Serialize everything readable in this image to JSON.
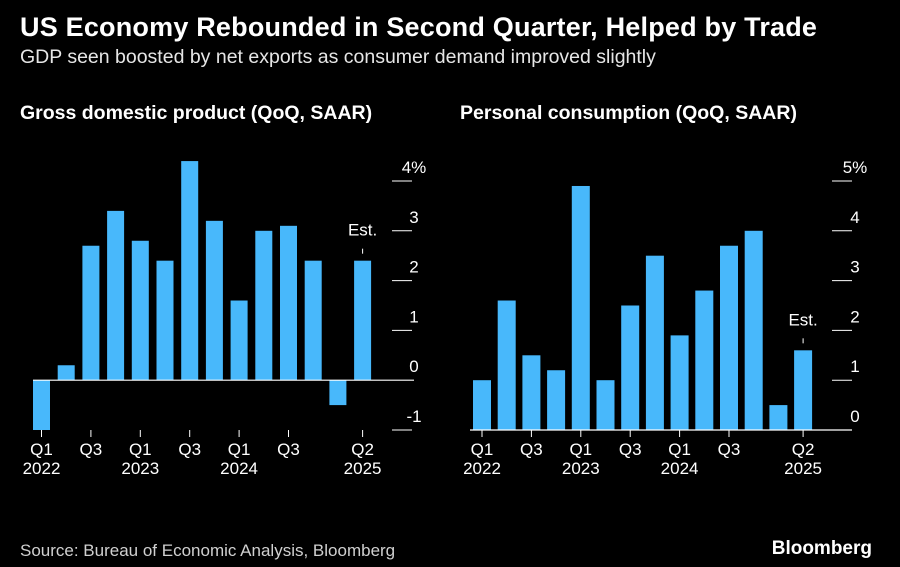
{
  "header": {
    "title": "US Economy Rebounded in Second Quarter, Helped by Trade",
    "subtitle": "GDP seen boosted by net exports as consumer demand improved slightly"
  },
  "footer": {
    "source": "Source: Bureau of Economic Analysis, Bloomberg",
    "brand": "Bloomberg"
  },
  "colors": {
    "bar": "#48b8fb",
    "axis": "#ffffff",
    "background": "#000000"
  },
  "chart_data": [
    {
      "type": "bar",
      "title": "Gross domestic product (QoQ, SAAR)",
      "categories": [
        "Q1 2022",
        "Q2 2022",
        "Q3 2022",
        "Q4 2022",
        "Q1 2023",
        "Q2 2023",
        "Q3 2023",
        "Q4 2023",
        "Q1 2024",
        "Q2 2024",
        "Q3 2024",
        "Q4 2024",
        "Q1 2025",
        "Q2 2025"
      ],
      "values": [
        -1.0,
        0.3,
        2.7,
        3.4,
        2.8,
        2.4,
        4.4,
        3.2,
        1.6,
        3.0,
        3.1,
        2.4,
        -0.5,
        2.4
      ],
      "ylim": [
        -1,
        4
      ],
      "yticks": [
        -1,
        0,
        1,
        2,
        3,
        4
      ],
      "ytick_labels": [
        "-1",
        "0",
        "1",
        "2",
        "3",
        "4%"
      ],
      "x_tick_labels": [
        {
          "index": 0,
          "quarter": "Q1",
          "year": "2022"
        },
        {
          "index": 2,
          "quarter": "Q3",
          "year": ""
        },
        {
          "index": 4,
          "quarter": "Q1",
          "year": "2023"
        },
        {
          "index": 6,
          "quarter": "Q3",
          "year": ""
        },
        {
          "index": 8,
          "quarter": "Q1",
          "year": "2024"
        },
        {
          "index": 10,
          "quarter": "Q3",
          "year": ""
        },
        {
          "index": 13,
          "quarter": "Q2",
          "year": "2025"
        }
      ],
      "annotation": {
        "index": 13,
        "text": "Est."
      },
      "xlabel": "",
      "ylabel": ""
    },
    {
      "type": "bar",
      "title": "Personal consumption (QoQ, SAAR)",
      "categories": [
        "Q1 2022",
        "Q2 2022",
        "Q3 2022",
        "Q4 2022",
        "Q1 2023",
        "Q2 2023",
        "Q3 2023",
        "Q4 2023",
        "Q1 2024",
        "Q2 2024",
        "Q3 2024",
        "Q4 2024",
        "Q1 2025",
        "Q2 2025"
      ],
      "values": [
        1.0,
        2.6,
        1.5,
        1.2,
        4.9,
        1.0,
        2.5,
        3.5,
        1.9,
        2.8,
        3.7,
        4.0,
        0.5,
        1.6
      ],
      "ylim": [
        0,
        5
      ],
      "yticks": [
        0,
        1,
        2,
        3,
        4,
        5
      ],
      "ytick_labels": [
        "0",
        "1",
        "2",
        "3",
        "4",
        "5%"
      ],
      "x_tick_labels": [
        {
          "index": 0,
          "quarter": "Q1",
          "year": "2022"
        },
        {
          "index": 2,
          "quarter": "Q3",
          "year": ""
        },
        {
          "index": 4,
          "quarter": "Q1",
          "year": "2023"
        },
        {
          "index": 6,
          "quarter": "Q3",
          "year": ""
        },
        {
          "index": 8,
          "quarter": "Q1",
          "year": "2024"
        },
        {
          "index": 10,
          "quarter": "Q3",
          "year": ""
        },
        {
          "index": 13,
          "quarter": "Q2",
          "year": "2025"
        }
      ],
      "annotation": {
        "index": 13,
        "text": "Est."
      },
      "xlabel": "",
      "ylabel": ""
    }
  ]
}
